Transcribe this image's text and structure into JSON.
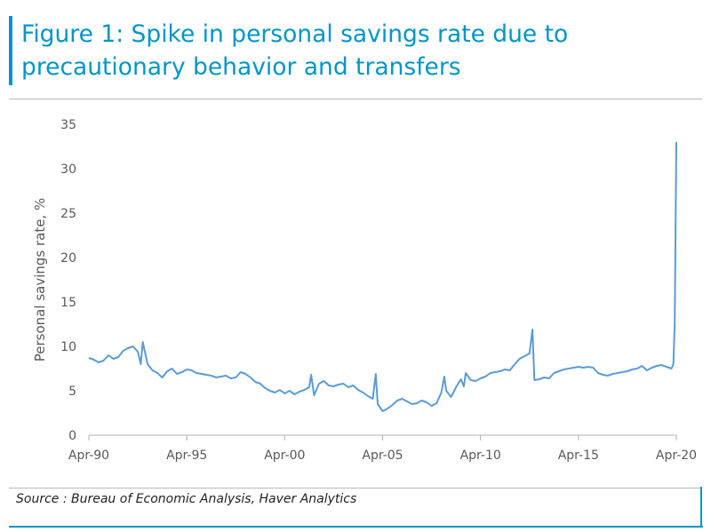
{
  "header": {
    "title": "Figure 1: Spike in personal savings rate due to precautionary behavior and transfers"
  },
  "footer": {
    "source": "Source : Bureau of Economic Analysis, Haver Analytics"
  },
  "colors": {
    "accent": "#0095C8",
    "line": "#5B9BD5",
    "axis_text": "#595959"
  },
  "chart_data": {
    "type": "line",
    "title": "",
    "xlabel": "",
    "ylabel": "Personal savings rate, %",
    "ylim": [
      0,
      35
    ],
    "yticks": [
      0,
      5,
      10,
      15,
      20,
      25,
      30,
      35
    ],
    "xlim": [
      1990.25,
      2020.25
    ],
    "xticks": [
      {
        "value": 1990.25,
        "label": "Apr-90"
      },
      {
        "value": 1995.25,
        "label": "Apr-95"
      },
      {
        "value": 2000.25,
        "label": "Apr-00"
      },
      {
        "value": 2005.25,
        "label": "Apr-05"
      },
      {
        "value": 2010.25,
        "label": "Apr-10"
      },
      {
        "value": 2015.25,
        "label": "Apr-15"
      },
      {
        "value": 2020.25,
        "label": "Apr-20"
      }
    ],
    "grid": false,
    "legend": "none",
    "series": [
      {
        "name": "",
        "x": [
          1990.25,
          1990.5,
          1990.75,
          1991.0,
          1991.25,
          1991.5,
          1991.75,
          1992.0,
          1992.25,
          1992.5,
          1992.75,
          1992.9,
          1993.0,
          1993.25,
          1993.5,
          1993.75,
          1994.0,
          1994.25,
          1994.5,
          1994.75,
          1995.0,
          1995.25,
          1995.5,
          1995.75,
          1996.0,
          1996.25,
          1996.5,
          1996.75,
          1997.0,
          1997.25,
          1997.5,
          1997.75,
          1998.0,
          1998.25,
          1998.5,
          1998.75,
          1999.0,
          1999.25,
          1999.5,
          1999.75,
          2000.0,
          2000.25,
          2000.5,
          2000.75,
          2001.0,
          2001.25,
          2001.5,
          2001.6,
          2001.75,
          2002.0,
          2002.25,
          2002.5,
          2002.75,
          2003.0,
          2003.25,
          2003.5,
          2003.75,
          2004.0,
          2004.25,
          2004.5,
          2004.75,
          2004.9,
          2005.0,
          2005.25,
          2005.5,
          2005.75,
          2006.0,
          2006.25,
          2006.5,
          2006.75,
          2007.0,
          2007.25,
          2007.5,
          2007.75,
          2008.0,
          2008.25,
          2008.4,
          2008.5,
          2008.75,
          2009.0,
          2009.25,
          2009.4,
          2009.5,
          2009.75,
          2010.0,
          2010.25,
          2010.5,
          2010.75,
          2011.0,
          2011.25,
          2011.5,
          2011.75,
          2012.0,
          2012.25,
          2012.5,
          2012.75,
          2012.9,
          2013.0,
          2013.25,
          2013.5,
          2013.75,
          2014.0,
          2014.25,
          2014.5,
          2014.75,
          2015.0,
          2015.25,
          2015.5,
          2015.75,
          2016.0,
          2016.25,
          2016.5,
          2016.75,
          2017.0,
          2017.25,
          2017.5,
          2017.75,
          2018.0,
          2018.25,
          2018.5,
          2018.75,
          2019.0,
          2019.25,
          2019.5,
          2019.75,
          2020.0,
          2020.1,
          2020.17,
          2020.25
        ],
        "y": [
          8.7,
          8.5,
          8.2,
          8.4,
          9.0,
          8.6,
          8.8,
          9.5,
          9.8,
          10.0,
          9.4,
          8.0,
          10.5,
          8.0,
          7.3,
          7.0,
          6.5,
          7.2,
          7.5,
          6.9,
          7.1,
          7.4,
          7.3,
          7.0,
          6.9,
          6.8,
          6.7,
          6.5,
          6.6,
          6.7,
          6.4,
          6.5,
          7.1,
          6.9,
          6.5,
          6.0,
          5.8,
          5.3,
          5.0,
          4.8,
          5.1,
          4.7,
          5.0,
          4.6,
          4.9,
          5.1,
          5.4,
          6.8,
          4.5,
          5.8,
          6.1,
          5.6,
          5.5,
          5.7,
          5.8,
          5.4,
          5.6,
          5.1,
          4.8,
          4.4,
          4.1,
          6.9,
          3.5,
          2.7,
          3.0,
          3.4,
          3.9,
          4.1,
          3.8,
          3.5,
          3.6,
          3.9,
          3.7,
          3.3,
          3.6,
          4.8,
          6.6,
          5.0,
          4.3,
          5.4,
          6.3,
          5.5,
          7.0,
          6.2,
          6.1,
          6.4,
          6.6,
          7.0,
          7.1,
          7.2,
          7.4,
          7.3,
          8.0,
          8.6,
          8.9,
          9.2,
          11.9,
          6.2,
          6.3,
          6.5,
          6.4,
          7.0,
          7.2,
          7.4,
          7.5,
          7.6,
          7.7,
          7.6,
          7.7,
          7.6,
          7.0,
          6.8,
          6.7,
          6.9,
          7.0,
          7.1,
          7.2,
          7.4,
          7.5,
          7.8,
          7.3,
          7.6,
          7.8,
          7.9,
          7.7,
          7.5,
          8.0,
          12.7,
          33.0
        ]
      }
    ]
  }
}
